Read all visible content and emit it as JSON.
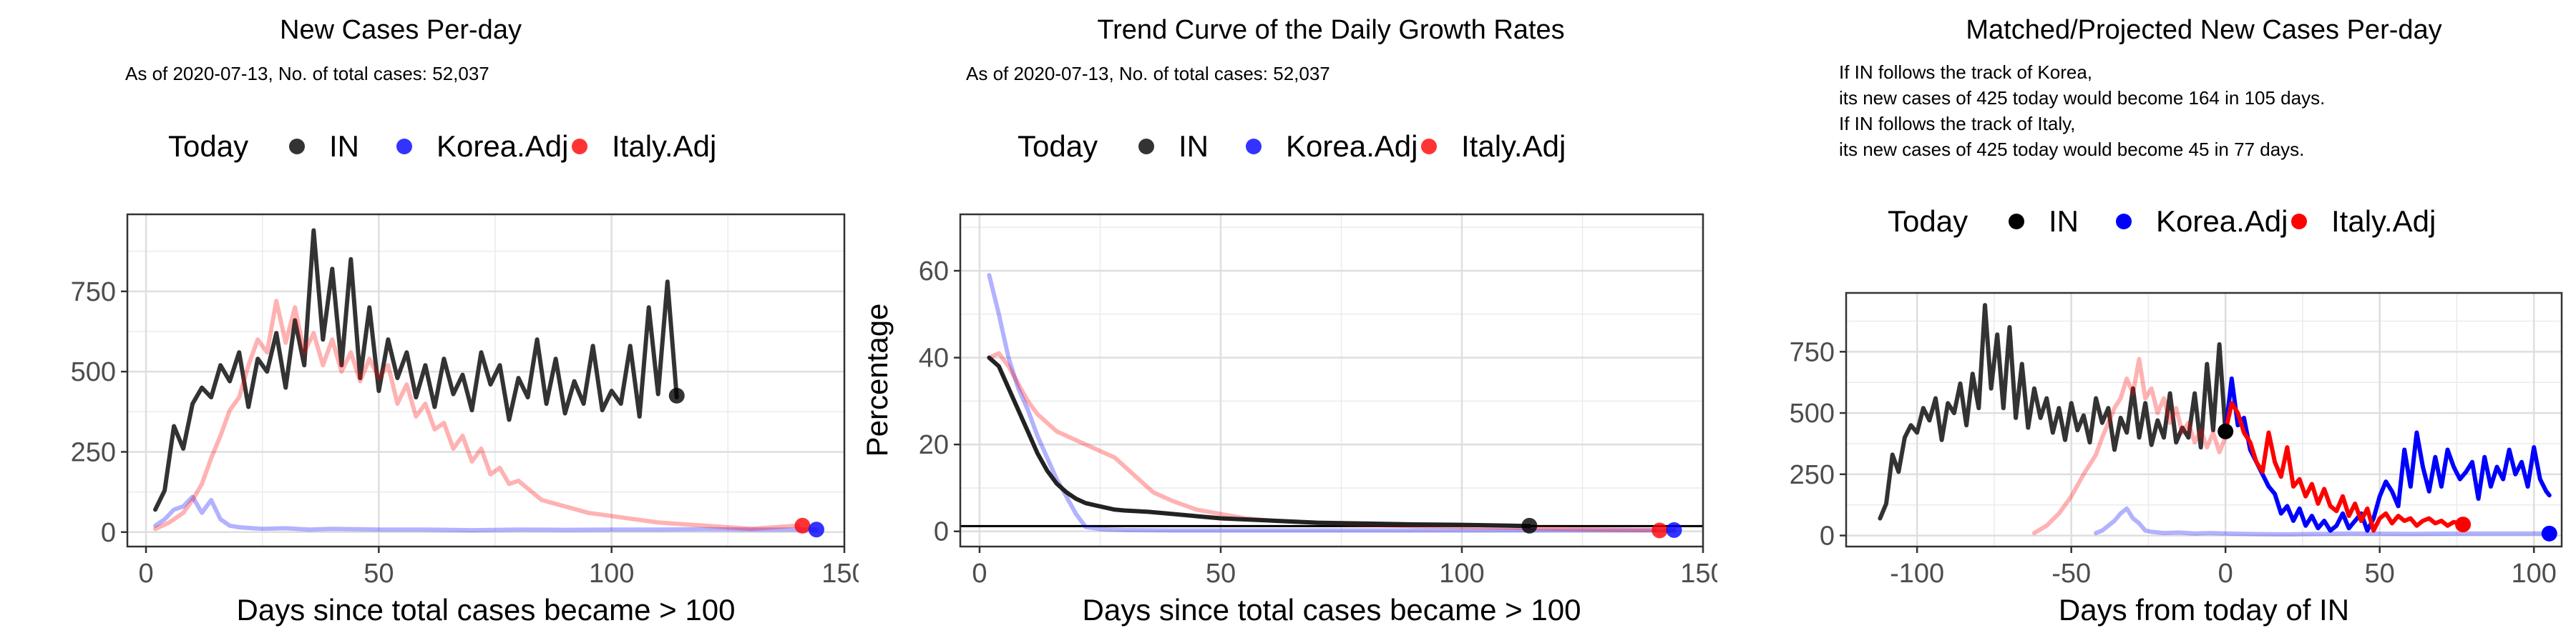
{
  "panels": [
    {
      "title": "New Cases Per-day",
      "subtitle_lines": [
        "As of 2020-07-13, No. of total cases: 52,037"
      ]
    },
    {
      "title": "Trend Curve of the Daily Growth Rates",
      "subtitle_lines": [
        "As of 2020-07-13, No. of total cases: 52,037"
      ]
    },
    {
      "title": "Matched/Projected New Cases Per-day",
      "subtitle_lines": [
        "If IN follows the track of Korea,",
        "its new cases of 425 today would become 164 in 105 days.",
        "If IN follows the track of Italy,",
        "its new cases of 425 today would become 45 in 77 days."
      ]
    }
  ],
  "legend": {
    "title": "Today",
    "items": [
      {
        "label": "IN",
        "color": "#000000"
      },
      {
        "label": "Korea.Adj",
        "color": "#0000ff"
      },
      {
        "label": "Italy.Adj",
        "color": "#ff0000"
      }
    ]
  },
  "chart_data": [
    {
      "type": "line",
      "title": "New Cases Per-day",
      "xlabel": "Days since total cases became > 100",
      "ylabel": "",
      "xlim": [
        -4,
        150
      ],
      "ylim": [
        -45,
        990
      ],
      "xticks": [
        0,
        50,
        100,
        150
      ],
      "yticks": [
        0,
        250,
        500,
        750
      ],
      "grid": true,
      "series": [
        {
          "name": "IN",
          "color": "#333333",
          "opacity": 1,
          "x": [
            2,
            4,
            6,
            8,
            10,
            12,
            14,
            16,
            18,
            20,
            22,
            24,
            26,
            28,
            30,
            32,
            34,
            36,
            38,
            40,
            42,
            44,
            46,
            48,
            50,
            52,
            54,
            56,
            58,
            60,
            62,
            64,
            66,
            68,
            70,
            72,
            74,
            76,
            78,
            80,
            82,
            84,
            86,
            88,
            90,
            92,
            94,
            96,
            98,
            100,
            102,
            104,
            106,
            108,
            110,
            112,
            114
          ],
          "y": [
            70,
            130,
            330,
            260,
            400,
            450,
            420,
            520,
            470,
            560,
            390,
            540,
            500,
            620,
            450,
            660,
            520,
            940,
            600,
            820,
            520,
            850,
            480,
            700,
            440,
            600,
            480,
            560,
            420,
            520,
            390,
            540,
            430,
            490,
            380,
            560,
            460,
            520,
            350,
            480,
            420,
            600,
            400,
            540,
            370,
            470,
            400,
            580,
            380,
            440,
            400,
            580,
            360,
            700,
            430,
            780,
            420
          ]
        },
        {
          "name": "Korea.Adj",
          "color": "#0000ff",
          "opacity": 0.3,
          "x": [
            2,
            4,
            6,
            8,
            10,
            12,
            14,
            16,
            18,
            20,
            25,
            30,
            35,
            40,
            50,
            60,
            70,
            80,
            90,
            100,
            110,
            120,
            130,
            140,
            144
          ],
          "y": [
            20,
            40,
            70,
            80,
            110,
            60,
            100,
            40,
            20,
            15,
            10,
            12,
            8,
            10,
            8,
            8,
            6,
            8,
            7,
            8,
            8,
            9,
            8,
            8,
            8
          ]
        },
        {
          "name": "Italy.Adj",
          "color": "#ff0000",
          "opacity": 0.3,
          "x": [
            2,
            5,
            8,
            10,
            12,
            14,
            16,
            18,
            20,
            22,
            24,
            26,
            28,
            30,
            32,
            34,
            36,
            38,
            40,
            42,
            44,
            46,
            48,
            50,
            52,
            54,
            56,
            58,
            60,
            62,
            64,
            66,
            68,
            70,
            72,
            74,
            76,
            78,
            80,
            85,
            90,
            95,
            100,
            105,
            110,
            115,
            120,
            125,
            130,
            135,
            140
          ],
          "y": [
            10,
            30,
            60,
            100,
            150,
            230,
            300,
            380,
            420,
            520,
            600,
            560,
            720,
            590,
            700,
            560,
            620,
            520,
            600,
            500,
            560,
            470,
            540,
            480,
            520,
            400,
            460,
            360,
            400,
            320,
            340,
            260,
            300,
            220,
            260,
            180,
            200,
            150,
            160,
            100,
            80,
            60,
            50,
            40,
            30,
            25,
            20,
            15,
            10,
            15,
            20
          ]
        }
      ],
      "today_points": [
        {
          "series": "IN",
          "x": 114,
          "y": 425
        },
        {
          "series": "Italy.Adj",
          "x": 141,
          "y": 20
        },
        {
          "series": "Korea.Adj",
          "x": 144,
          "y": 8
        }
      ]
    },
    {
      "type": "line",
      "title": "Trend Curve of the Daily Growth Rates",
      "xlabel": "Days since total cases became > 100",
      "ylabel": "Percentage",
      "xlim": [
        -4,
        150
      ],
      "ylim": [
        -3.5,
        73
      ],
      "xticks": [
        0,
        50,
        100,
        150
      ],
      "yticks": [
        0,
        20,
        40,
        60
      ],
      "hline": 1.2,
      "grid": true,
      "series": [
        {
          "name": "Korea.Adj",
          "color": "#0000ff",
          "opacity": 0.3,
          "x": [
            2,
            4,
            6,
            8,
            10,
            12,
            14,
            16,
            18,
            20,
            22,
            25,
            30,
            40,
            60,
            80,
            100,
            120,
            140,
            144
          ],
          "y": [
            59,
            50,
            40,
            33,
            28,
            22,
            17,
            12,
            8,
            4,
            1,
            0.5,
            0.3,
            0.2,
            0.2,
            0.2,
            0.2,
            0.2,
            0.2,
            0.2
          ]
        },
        {
          "name": "Italy.Adj",
          "color": "#ff0000",
          "opacity": 0.3,
          "x": [
            2,
            4,
            6,
            8,
            10,
            12,
            14,
            16,
            18,
            20,
            22,
            24,
            26,
            28,
            30,
            32,
            34,
            36,
            38,
            40,
            45,
            50,
            55,
            60,
            70,
            80,
            90,
            100,
            110,
            120,
            130,
            140
          ],
          "y": [
            40,
            41,
            38,
            34,
            30,
            27,
            25,
            23,
            22,
            21,
            20,
            19,
            18,
            17,
            15,
            13,
            11,
            9,
            8,
            7,
            5,
            4,
            3,
            2.5,
            2,
            1.5,
            1.2,
            1,
            0.8,
            0.6,
            0.4,
            0.3
          ]
        },
        {
          "name": "IN",
          "color": "#222222",
          "opacity": 1,
          "x": [
            2,
            4,
            6,
            8,
            10,
            12,
            14,
            16,
            18,
            20,
            22,
            24,
            26,
            28,
            30,
            35,
            40,
            45,
            50,
            60,
            70,
            80,
            90,
            100,
            110,
            114
          ],
          "y": [
            40,
            38,
            33,
            28,
            23,
            18,
            14,
            11,
            9,
            7.5,
            6.5,
            6,
            5.5,
            5,
            4.8,
            4.5,
            4,
            3.5,
            3,
            2.5,
            2,
            1.8,
            1.6,
            1.5,
            1.3,
            1.2
          ]
        }
      ],
      "today_points": [
        {
          "series": "IN",
          "x": 114,
          "y": 1.3
        },
        {
          "series": "Italy.Adj",
          "x": 141,
          "y": 0.2
        },
        {
          "series": "Korea.Adj",
          "x": 144,
          "y": 0.3
        }
      ]
    },
    {
      "type": "line",
      "title": "Matched/Projected New Cases Per-day",
      "xlabel": "Days from today of IN",
      "ylabel": "",
      "xlim": [
        -123,
        109
      ],
      "ylim": [
        -45,
        990
      ],
      "xticks": [
        -100,
        -50,
        0,
        50,
        100
      ],
      "yticks": [
        0,
        250,
        500,
        750
      ],
      "grid": true,
      "series": [
        {
          "name": "IN",
          "color": "#333333",
          "opacity": 1,
          "x": [
            -112,
            -110,
            -108,
            -106,
            -104,
            -102,
            -100,
            -98,
            -96,
            -94,
            -92,
            -90,
            -88,
            -86,
            -84,
            -82,
            -80,
            -78,
            -76,
            -74,
            -72,
            -70,
            -68,
            -66,
            -64,
            -62,
            -60,
            -58,
            -56,
            -54,
            -52,
            -50,
            -48,
            -46,
            -44,
            -42,
            -40,
            -38,
            -36,
            -34,
            -32,
            -30,
            -28,
            -26,
            -24,
            -22,
            -20,
            -18,
            -16,
            -14,
            -12,
            -10,
            -8,
            -6,
            -4,
            -2,
            0
          ],
          "y": [
            70,
            130,
            330,
            260,
            400,
            450,
            420,
            520,
            470,
            560,
            390,
            540,
            500,
            620,
            450,
            660,
            520,
            940,
            600,
            820,
            520,
            850,
            480,
            700,
            440,
            600,
            480,
            560,
            420,
            520,
            390,
            540,
            430,
            490,
            380,
            560,
            460,
            520,
            350,
            480,
            420,
            600,
            400,
            540,
            370,
            470,
            400,
            580,
            380,
            440,
            400,
            580,
            360,
            700,
            430,
            780,
            420
          ]
        },
        {
          "name": "Korea.Adj (matched)",
          "color": "#0000ff",
          "opacity": 0.3,
          "x": [
            -42,
            -40,
            -38,
            -36,
            -34,
            -32,
            -30,
            -28,
            -26,
            -24,
            -20,
            -15,
            -10,
            -5,
            0,
            10,
            20,
            40,
            60,
            80,
            100,
            105
          ],
          "y": [
            10,
            20,
            40,
            60,
            90,
            110,
            70,
            50,
            20,
            15,
            10,
            12,
            8,
            10,
            8,
            6,
            5,
            8,
            7,
            8,
            8,
            8
          ]
        },
        {
          "name": "Italy.Adj (matched)",
          "color": "#ff0000",
          "opacity": 0.3,
          "x": [
            -62,
            -58,
            -54,
            -50,
            -46,
            -42,
            -40,
            -38,
            -36,
            -34,
            -32,
            -30,
            -28,
            -26,
            -24,
            -22,
            -20,
            -18,
            -16,
            -14,
            -12,
            -10,
            -8,
            -6,
            -4,
            -2,
            0
          ],
          "y": [
            10,
            40,
            90,
            160,
            250,
            330,
            400,
            460,
            520,
            560,
            640,
            580,
            720,
            560,
            600,
            500,
            560,
            460,
            520,
            420,
            460,
            380,
            430,
            360,
            420,
            340,
            400
          ]
        },
        {
          "name": "Korea.Adj (projected)",
          "color": "#0000ff",
          "opacity": 1,
          "x": [
            0,
            2,
            4,
            6,
            8,
            10,
            12,
            14,
            16,
            18,
            20,
            22,
            24,
            26,
            28,
            30,
            32,
            34,
            36,
            38,
            40,
            42,
            44,
            46,
            48,
            50,
            52,
            54,
            56,
            58,
            60,
            62,
            64,
            66,
            68,
            70,
            72,
            74,
            76,
            78,
            80,
            82,
            84,
            86,
            88,
            90,
            92,
            94,
            96,
            98,
            100,
            102,
            104,
            105
          ],
          "y": [
            425,
            640,
            450,
            480,
            350,
            300,
            250,
            200,
            170,
            90,
            120,
            60,
            110,
            40,
            80,
            30,
            60,
            20,
            40,
            90,
            30,
            60,
            90,
            20,
            70,
            160,
            220,
            180,
            120,
            350,
            200,
            420,
            280,
            180,
            320,
            200,
            350,
            280,
            230,
            260,
            300,
            150,
            320,
            200,
            280,
            230,
            350,
            250,
            300,
            200,
            360,
            230,
            180,
            164
          ]
        },
        {
          "name": "Italy.Adj (projected)",
          "color": "#ff0000",
          "opacity": 1,
          "x": [
            0,
            2,
            4,
            6,
            8,
            10,
            12,
            14,
            16,
            18,
            20,
            22,
            24,
            26,
            28,
            30,
            32,
            34,
            36,
            38,
            40,
            42,
            44,
            46,
            48,
            50,
            52,
            54,
            56,
            58,
            60,
            62,
            64,
            66,
            68,
            70,
            72,
            74,
            76,
            77
          ],
          "y": [
            425,
            540,
            500,
            420,
            380,
            300,
            260,
            420,
            300,
            240,
            360,
            200,
            230,
            160,
            210,
            130,
            190,
            120,
            100,
            160,
            80,
            130,
            60,
            110,
            20,
            70,
            90,
            50,
            80,
            60,
            70,
            40,
            60,
            70,
            50,
            60,
            40,
            55,
            50,
            45
          ]
        }
      ],
      "today_points": [
        {
          "series": "IN",
          "x": 0,
          "y": 425
        },
        {
          "series": "Italy.Adj",
          "x": 77,
          "y": 45
        },
        {
          "series": "Korea.Adj",
          "x": 105,
          "y": 8
        }
      ]
    }
  ]
}
